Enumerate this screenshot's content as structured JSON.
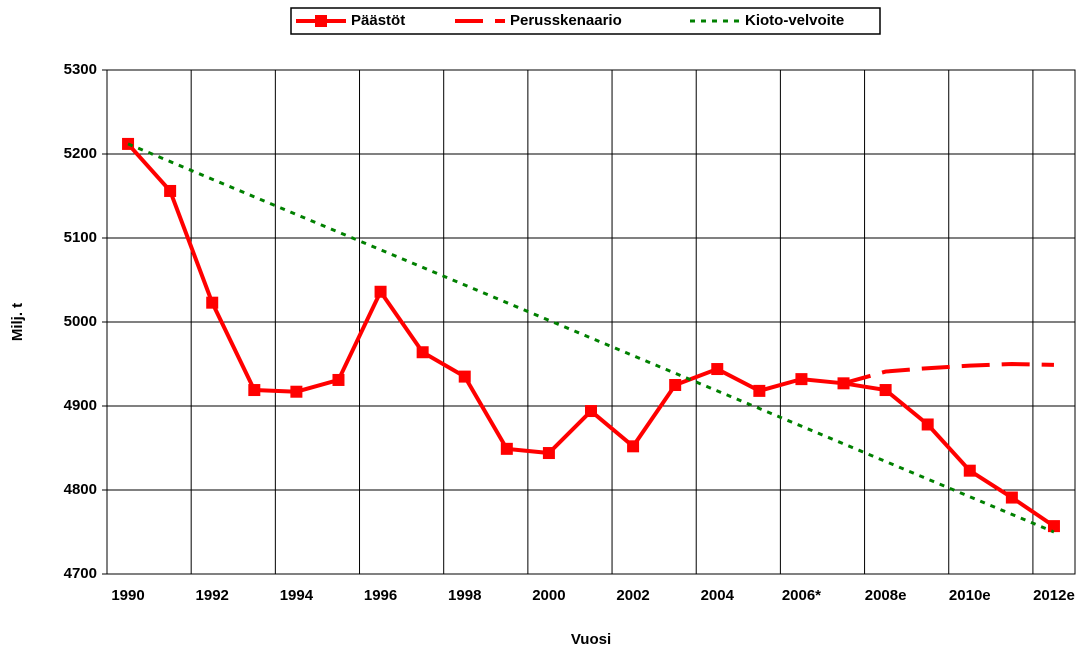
{
  "chart_data": {
    "type": "line",
    "x_label": "Vuosi",
    "y_label": "Milj. t",
    "categories": [
      "1990",
      null,
      "1992",
      null,
      "1994",
      null,
      "1996",
      null,
      "1998",
      null,
      "2000",
      null,
      "2002",
      null,
      "2004",
      null,
      "2006*",
      null,
      "2008e",
      null,
      "2010e",
      null,
      "2012e"
    ],
    "series": [
      {
        "name": "Päästöt",
        "color": "#ff0000",
        "style": "solid",
        "marker": "square",
        "values": [
          5212,
          5156,
          5023,
          4919,
          4917,
          4931,
          5036,
          4964,
          4935,
          4849,
          4844,
          4894,
          4852,
          4925,
          4944,
          4918,
          4932,
          4927,
          4919,
          4878,
          4823,
          4791,
          4757
        ]
      },
      {
        "name": "Perusskenaario",
        "color": "#ff0000",
        "style": "dashed",
        "values": [
          null,
          null,
          null,
          null,
          null,
          null,
          null,
          null,
          null,
          null,
          null,
          null,
          null,
          null,
          null,
          null,
          null,
          4927,
          4941,
          4945,
          4948,
          4950,
          4949
        ]
      },
      {
        "name": "Kioto-velvoite",
        "color": "#008000",
        "style": "dotted",
        "values": [
          5212,
          5191,
          5170,
          5149,
          5128,
          5107,
          5086,
          5065,
          5044,
          5023,
          5002,
          4981,
          4960,
          4939,
          4918,
          4897,
          4876,
          4855,
          4834,
          4813,
          4792,
          4771,
          4750
        ]
      }
    ],
    "ylim": [
      4700,
      5300
    ],
    "yticks": [
      4700,
      4800,
      4900,
      5000,
      5100,
      5200,
      5300
    ],
    "grid": true,
    "legend": "top"
  }
}
